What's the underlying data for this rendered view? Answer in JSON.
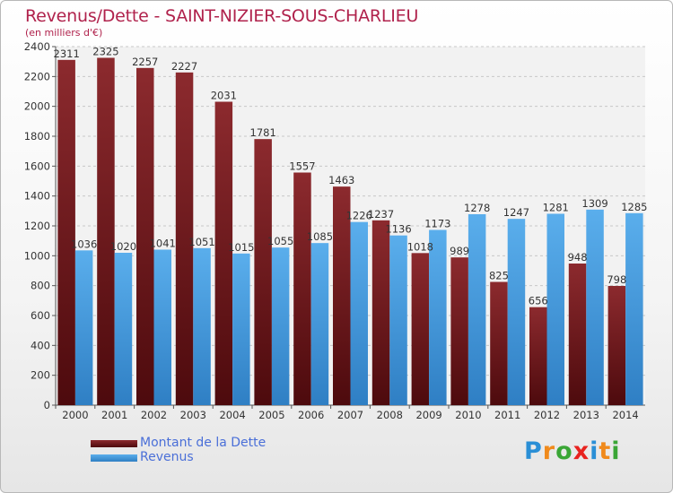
{
  "chart_data": {
    "type": "bar",
    "title": "Revenus/Dette - SAINT-NIZIER-SOUS-CHARLIEU",
    "subtitle": "(en milliers d'€)",
    "categories": [
      "2000",
      "2001",
      "2002",
      "2003",
      "2004",
      "2005",
      "2006",
      "2007",
      "2008",
      "2009",
      "2010",
      "2011",
      "2012",
      "2013",
      "2014"
    ],
    "series": [
      {
        "name": "Montant de la Dette",
        "color": "#7a1f23",
        "values": [
          2311,
          2325,
          2257,
          2227,
          2031,
          1781,
          1557,
          1463,
          1237,
          1018,
          989,
          825,
          656,
          948,
          798
        ]
      },
      {
        "name": "Revenus",
        "color": "#4a9fe3",
        "values": [
          1036,
          1020,
          1041,
          1051,
          1015,
          1055,
          1085,
          1226,
          1136,
          1173,
          1278,
          1247,
          1281,
          1309,
          1285
        ]
      }
    ],
    "ylim": [
      0,
      2400
    ],
    "yticks": [
      0,
      200,
      400,
      600,
      800,
      1000,
      1200,
      1400,
      1600,
      1800,
      2000,
      2200,
      2400
    ],
    "grid": true,
    "legend_position": "bottom-left"
  },
  "logo": {
    "text": "Proxiti",
    "letters": [
      "P",
      "r",
      "o",
      "x",
      "i",
      "t",
      "i"
    ],
    "colors": [
      "#2a8fd6",
      "#f08a1c",
      "#3aa636",
      "#e8231f",
      "#2a8fd6",
      "#f08a1c",
      "#3aa636"
    ]
  }
}
